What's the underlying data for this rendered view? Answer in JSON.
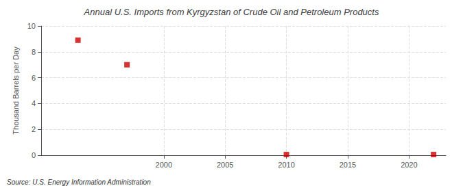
{
  "chart_data": {
    "type": "scatter",
    "title": "Annual U.S. Imports from Kyrgyzstan of Crude Oil and Petroleum Products",
    "y_label": "Thousand Barrels per Day",
    "annotations": [
      "Source: U.S. Energy Information Administration"
    ],
    "x": [
      1993,
      1997,
      2010,
      2022
    ],
    "values": [
      8.9,
      7.0,
      0.05,
      0.05
    ],
    "color": "#cc0000",
    "marker": "square",
    "xlim": [
      1990,
      2023
    ],
    "xticks": [
      2000,
      2005,
      2010,
      2015,
      2020
    ],
    "ylim": [
      0,
      10
    ],
    "yticks": [
      0,
      2,
      4,
      6,
      8,
      10
    ],
    "grid": true
  }
}
